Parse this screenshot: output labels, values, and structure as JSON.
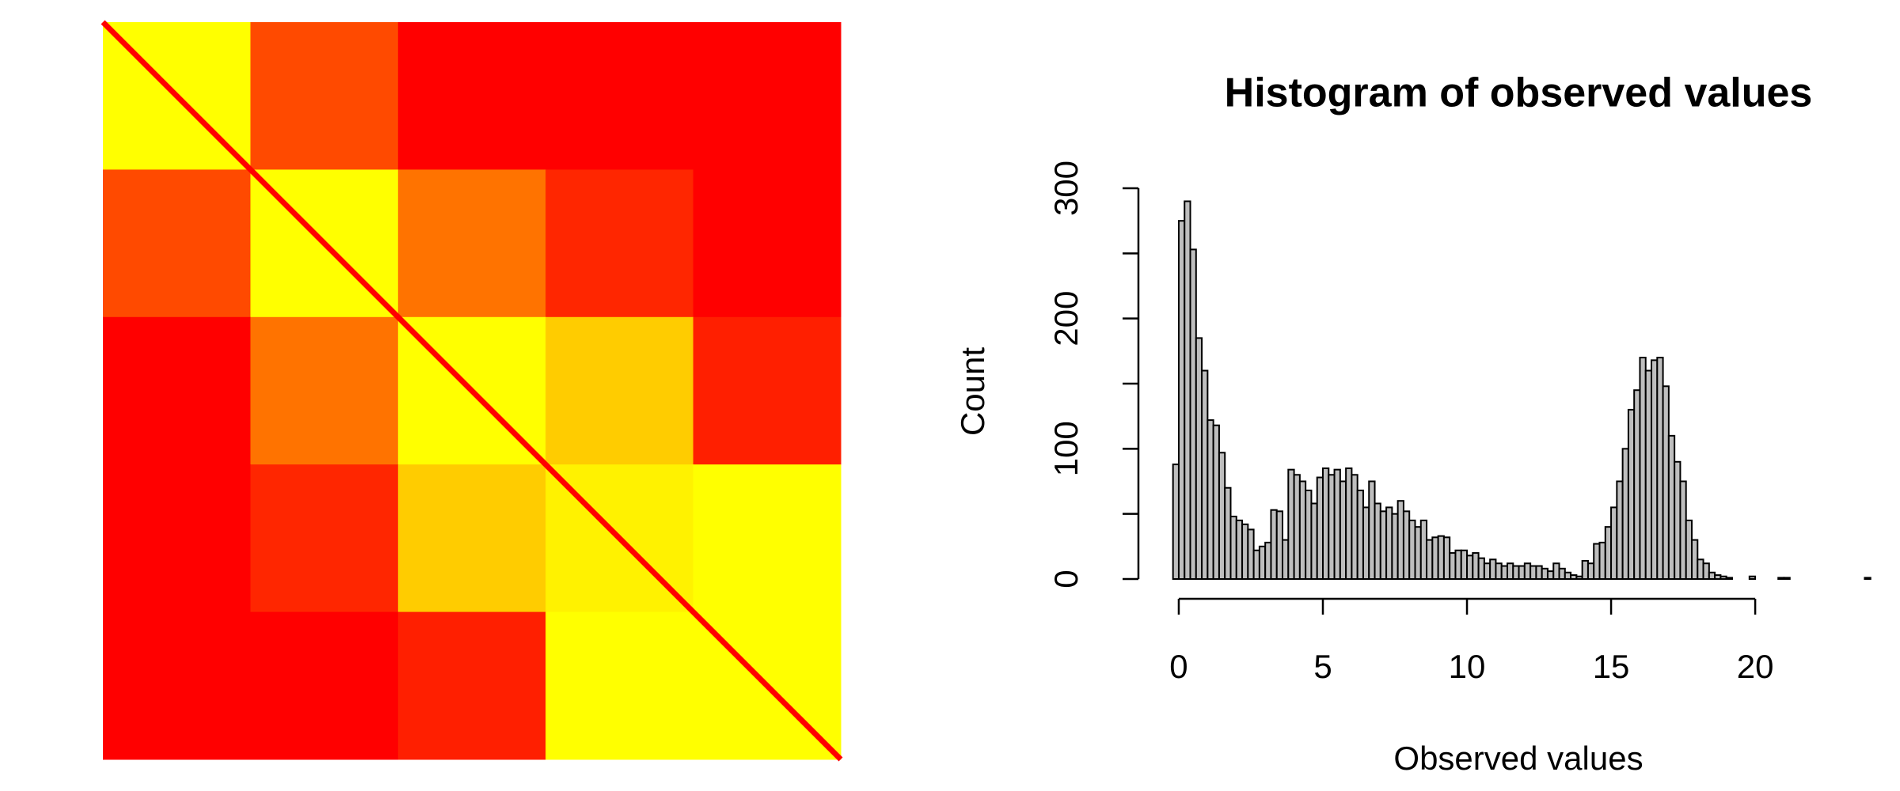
{
  "chart_data": [
    {
      "type": "heatmap",
      "values": [
        [
          1,
          0.29,
          0,
          0,
          0
        ],
        [
          0.29,
          1,
          0.45,
          0.15,
          0
        ],
        [
          0,
          0.45,
          1,
          0.8,
          0.12
        ],
        [
          0,
          0.15,
          0.8,
          0.95,
          1
        ],
        [
          0,
          0,
          0.12,
          1,
          1
        ]
      ],
      "diagonal": 0,
      "zlim": [
        0,
        1
      ],
      "colors": [
        "#ff0000",
        "#ffff00"
      ]
    },
    {
      "type": "histogram",
      "title": "Histogram of observed values",
      "xlabel": "Observed values",
      "ylabel": "Count",
      "color": "#bebebe",
      "bins": [
        -0.2,
        0,
        0.2,
        0.4,
        0.6,
        0.8,
        1,
        1.2,
        1.4,
        1.6,
        1.8,
        2,
        2.2,
        2.4,
        2.6,
        2.8,
        3,
        3.2,
        3.4,
        3.6,
        3.8,
        4,
        4.2,
        4.4,
        4.6,
        4.8,
        5,
        5.2,
        5.4,
        5.6,
        5.8,
        6,
        6.2,
        6.4,
        6.6,
        6.8,
        7,
        7.2,
        7.4,
        7.6,
        7.8,
        8,
        8.2,
        8.4,
        8.6,
        8.8,
        9,
        9.2,
        9.4,
        9.6,
        9.8,
        10,
        10.2,
        10.4,
        10.6,
        10.8,
        11,
        11.2,
        11.4,
        11.6,
        11.8,
        12,
        12.2,
        12.4,
        12.6,
        12.8,
        13,
        13.2,
        13.4,
        13.6,
        13.8,
        14,
        14.2,
        14.4,
        14.6,
        14.8,
        15,
        15.2,
        15.4,
        15.6,
        15.8,
        16,
        16.2,
        16.4,
        16.6,
        16.8,
        17,
        17.2,
        17.4,
        17.6,
        17.8,
        18,
        18.2,
        18.4,
        18.6,
        18.8,
        19,
        19.2,
        19.4,
        19.6,
        19.8,
        20,
        20.2,
        20.4,
        20.6,
        20.8,
        21,
        21.2,
        21.4,
        21.6,
        21.8,
        22,
        22.2,
        22.4,
        22.6,
        22.8,
        23,
        23.2,
        23.4,
        23.6,
        23.8,
        24
      ],
      "counts": [
        88,
        275,
        290,
        253,
        185,
        160,
        122,
        118,
        97,
        70,
        48,
        45,
        42,
        38,
        22,
        25,
        28,
        53,
        52,
        30,
        84,
        80,
        75,
        68,
        58,
        78,
        85,
        80,
        84,
        75,
        85,
        80,
        68,
        55,
        75,
        58,
        52,
        55,
        50,
        60,
        52,
        45,
        40,
        45,
        30,
        32,
        33,
        32,
        20,
        22,
        22,
        18,
        20,
        16,
        12,
        15,
        12,
        10,
        12,
        10,
        10,
        12,
        10,
        10,
        8,
        6,
        12,
        8,
        5,
        3,
        2,
        14,
        12,
        27,
        28,
        40,
        55,
        75,
        100,
        130,
        145,
        170,
        160,
        168,
        170,
        148,
        110,
        90,
        75,
        45,
        30,
        15,
        12,
        5,
        3,
        2,
        1,
        0,
        0,
        0,
        2,
        0,
        0,
        0,
        0,
        1,
        1,
        0,
        0,
        0,
        0,
        0,
        0,
        0,
        0,
        0,
        0,
        0,
        0,
        0,
        1
      ],
      "xlim": [
        -1.4,
        24.2
      ],
      "ylim": [
        0,
        300
      ],
      "xticks": [
        0,
        5,
        10,
        15,
        20
      ],
      "yticks": [
        0,
        100,
        200,
        300
      ],
      "yminor_ticks": [
        50,
        150,
        250
      ]
    }
  ]
}
